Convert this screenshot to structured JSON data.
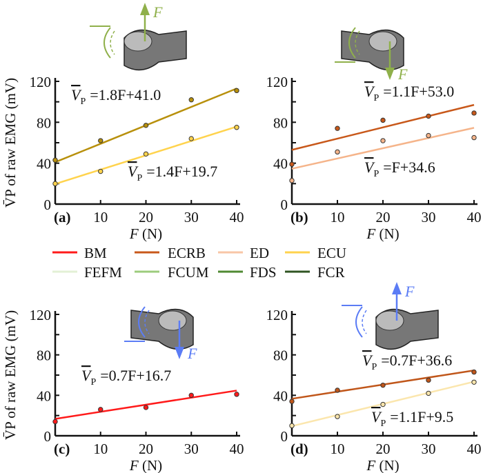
{
  "chart_data": [
    {
      "type": "scatter",
      "panel_label": "(a)",
      "xlabel": "F (N)",
      "ylabel": "V̄P of raw EMG (mV)",
      "xlim": [
        0,
        40
      ],
      "ylim": [
        0,
        120
      ],
      "xticks": [
        10,
        20,
        30,
        40
      ],
      "yticks": [
        0,
        40,
        80,
        120
      ],
      "x": [
        0,
        10,
        20,
        30,
        40
      ],
      "series": [
        {
          "color": "#b8900c",
          "values": [
            43,
            62,
            77,
            102,
            111
          ],
          "fit": {
            "slope": 1.8,
            "intercept": 41.0,
            "label": "=1.8F+41.0"
          }
        },
        {
          "color": "#ffd34d",
          "values": [
            20,
            32,
            49,
            64,
            75
          ],
          "fit": {
            "slope": 1.4,
            "intercept": 19.7,
            "label": "=1.4F+19.7"
          }
        }
      ],
      "force_arrow_color": "#8fb04a",
      "force_label": "F"
    },
    {
      "type": "scatter",
      "panel_label": "(b)",
      "xlabel": "F (N)",
      "xlim": [
        0,
        40
      ],
      "ylim": [
        0,
        120
      ],
      "xticks": [
        10,
        20,
        30,
        40
      ],
      "yticks": [
        0,
        40,
        80,
        120
      ],
      "x": [
        0,
        10,
        20,
        30,
        40
      ],
      "series": [
        {
          "color": "#c8581a",
          "values": [
            39,
            74,
            82,
            86,
            89
          ],
          "fit": {
            "slope": 1.1,
            "intercept": 53.0,
            "label": "=1.1F+53.0"
          }
        },
        {
          "color": "#f5b48a",
          "values": [
            23,
            51,
            62,
            67,
            65
          ],
          "fit": {
            "slope": 1.0,
            "intercept": 34.6,
            "label": "=F+34.6"
          }
        }
      ],
      "force_arrow_color": "#8fb04a",
      "force_label": "F"
    },
    {
      "type": "scatter",
      "panel_label": "(c)",
      "xlabel": "F (N)",
      "ylabel": "V̄P of raw EMG (mV)",
      "xlim": [
        0,
        40
      ],
      "ylim": [
        0,
        120
      ],
      "xticks": [
        10,
        20,
        30,
        40
      ],
      "yticks": [
        0,
        40,
        80,
        120
      ],
      "x": [
        0,
        10,
        20,
        30,
        40
      ],
      "series": [
        {
          "color": "#ff1a1a",
          "values": [
            14,
            26,
            28,
            40,
            41
          ],
          "fit": {
            "slope": 0.7,
            "intercept": 16.7,
            "label": "=0.7F+16.7"
          }
        }
      ],
      "force_arrow_color": "#5b7cf5",
      "force_label": "F"
    },
    {
      "type": "scatter",
      "panel_label": "(d)",
      "xlabel": "F (N)",
      "xlim": [
        0,
        40
      ],
      "ylim": [
        0,
        120
      ],
      "xticks": [
        10,
        20,
        30,
        40
      ],
      "yticks": [
        0,
        40,
        80,
        120
      ],
      "x": [
        0,
        10,
        20,
        30,
        40
      ],
      "series": [
        {
          "color": "#c0561a",
          "values": [
            34,
            45,
            50,
            55,
            63
          ],
          "fit": {
            "slope": 0.7,
            "intercept": 36.6,
            "label": "=0.7F+36.6"
          }
        },
        {
          "color": "#fbe6ad",
          "values": [
            10,
            19,
            31,
            42,
            53
          ],
          "fit": {
            "slope": 1.1,
            "intercept": 9.5,
            "label": "=1.1F+9.5"
          }
        }
      ],
      "force_arrow_color": "#5b7cf5",
      "force_label": "F"
    }
  ],
  "legend": [
    {
      "name": "BM",
      "color": "#ff1a1a"
    },
    {
      "name": "ECRB",
      "color": "#c8581a"
    },
    {
      "name": "ED",
      "color": "#f8c6a6"
    },
    {
      "name": "ECU",
      "color": "#ffd34d"
    },
    {
      "name": "FEFM",
      "color": "#e3f0d5"
    },
    {
      "name": "FCUM",
      "color": "#9ccc7c"
    },
    {
      "name": "FDS",
      "color": "#4f8a32"
    },
    {
      "name": "FCR",
      "color": "#2f5422"
    }
  ],
  "equation_symbol": {
    "main": "V",
    "sub": "P"
  }
}
